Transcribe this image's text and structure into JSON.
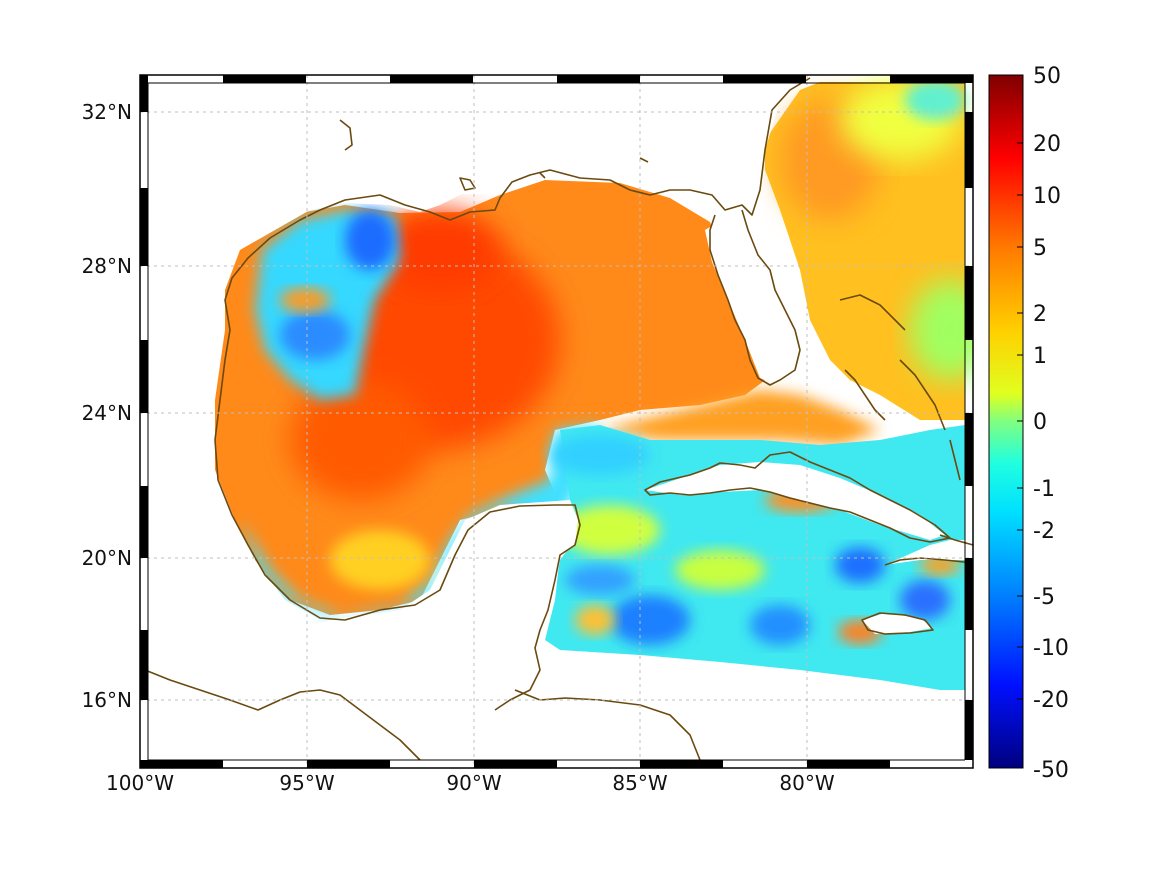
{
  "map": {
    "lon_labels": [
      "100°W",
      "95°W",
      "90°W",
      "85°W",
      "80°W"
    ],
    "lat_labels": [
      "32°N",
      "28°N",
      "24°N",
      "20°N",
      "16°N"
    ],
    "lon_range": [
      -100,
      -75
    ],
    "lat_range": [
      14.5,
      33
    ],
    "grid": true,
    "frame_style": "black-and-white striped border"
  },
  "colorbar": {
    "tick_labels": [
      "50",
      "20",
      "10",
      "5",
      "2",
      "1",
      "0",
      "-1",
      "-2",
      "-5",
      "-10",
      "-20",
      "-50"
    ],
    "colormap": "jet",
    "colors": [
      "#7f0000",
      "#ff0000",
      "#ff8000",
      "#ffff00",
      "#80ff80",
      "#00ffff",
      "#0080ff",
      "#0000ff",
      "#00007f"
    ]
  },
  "colors": {
    "coastline": "#6b4a10",
    "grid": "#bfbfbf"
  }
}
